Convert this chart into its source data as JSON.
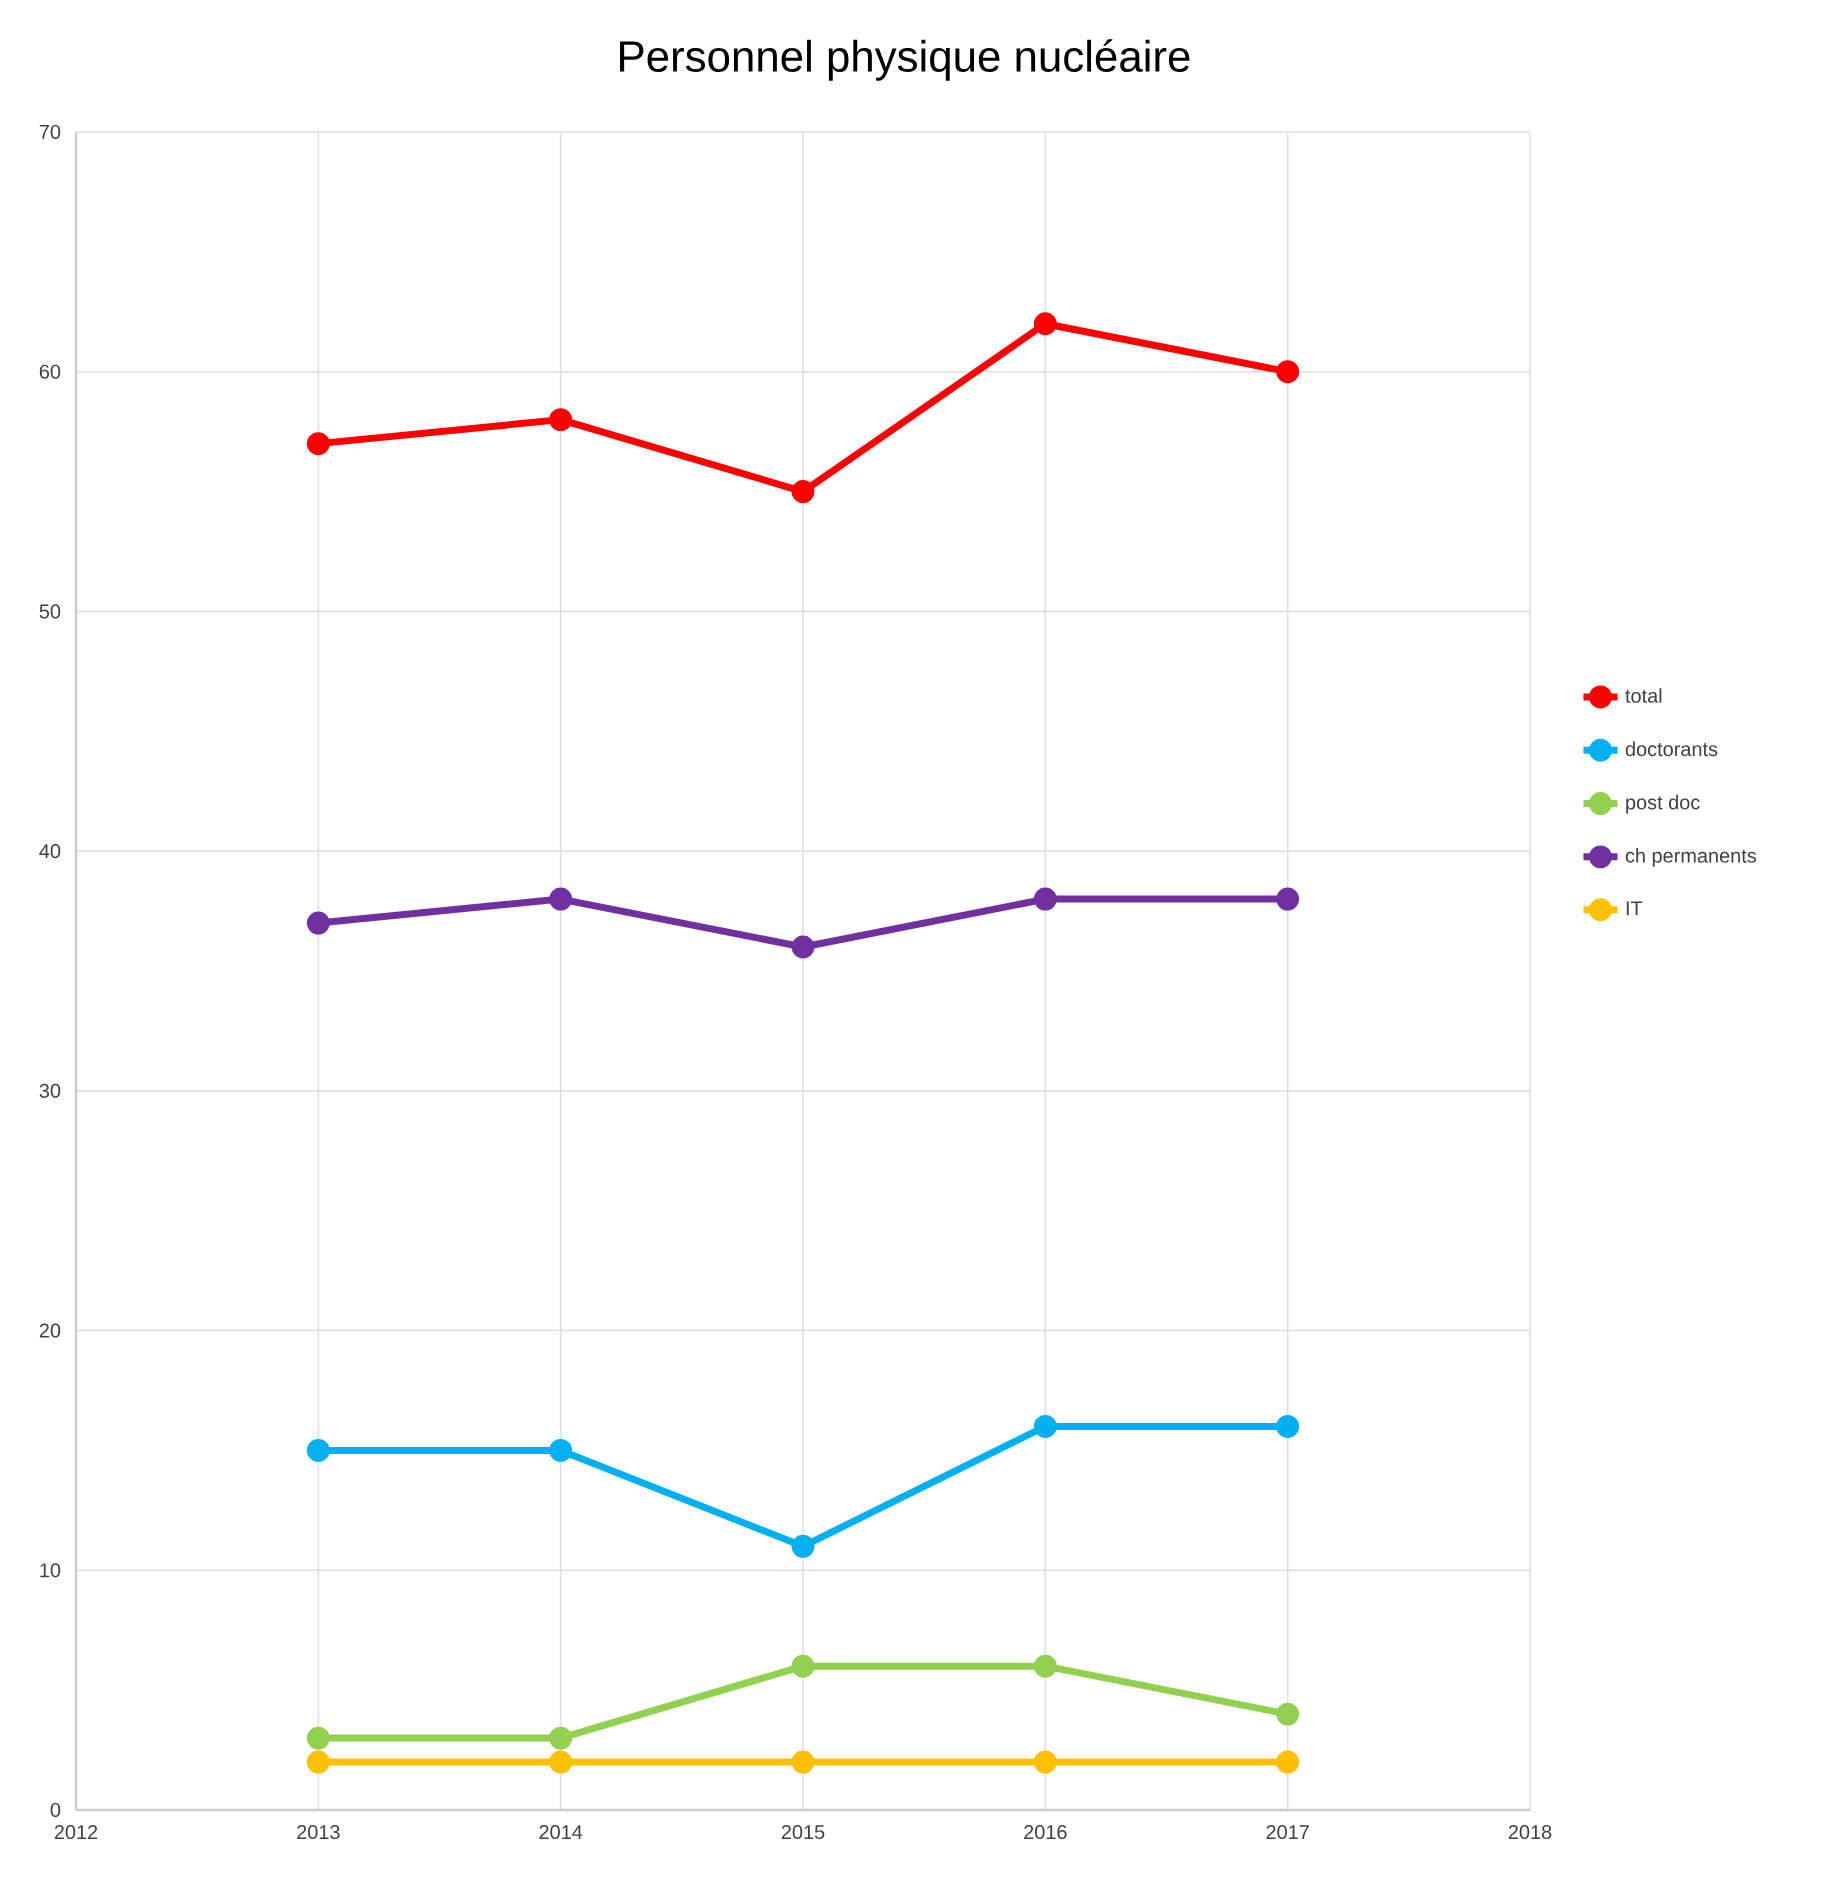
{
  "chart_data": {
    "type": "line",
    "title": "Personnel physique nucléaire",
    "x": [
      2013,
      2014,
      2015,
      2016,
      2017
    ],
    "series": [
      {
        "name": "total",
        "color": "#ff0000",
        "values": [
          57,
          58,
          55,
          62,
          60
        ]
      },
      {
        "name": "doctorants",
        "color": "#00b0f0",
        "values": [
          15,
          15,
          11,
          16,
          16
        ]
      },
      {
        "name": "post doc",
        "color": "#92d050",
        "values": [
          3,
          3,
          6,
          6,
          4
        ]
      },
      {
        "name": "ch permanents",
        "color": "#7030a0",
        "values": [
          37,
          38,
          36,
          38,
          38
        ]
      },
      {
        "name": "IT",
        "color": "#ffc000",
        "values": [
          2,
          2,
          2,
          2,
          2
        ]
      }
    ],
    "xlim": [
      2012,
      2018
    ],
    "xticks": [
      2012,
      2013,
      2014,
      2015,
      2016,
      2017,
      2018
    ],
    "ylim": [
      0,
      70
    ],
    "yticks": [
      0,
      10,
      20,
      30,
      40,
      50,
      60,
      70
    ],
    "grid": true,
    "legend": "right",
    "marker": "circle",
    "line_style": "solid"
  }
}
